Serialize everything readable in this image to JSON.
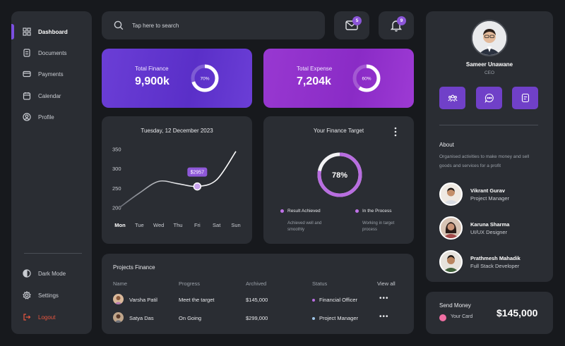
{
  "sidebar": {
    "items": [
      {
        "label": "Dashboard",
        "icon": "grid-icon"
      },
      {
        "label": "Documents",
        "icon": "document-icon"
      },
      {
        "label": "Payments",
        "icon": "card-icon"
      },
      {
        "label": "Calendar",
        "icon": "calendar-icon"
      },
      {
        "label": "Profile",
        "icon": "user-icon"
      }
    ],
    "bottom": [
      {
        "label": "Dark Mode",
        "icon": "contrast-icon"
      },
      {
        "label": "Settings",
        "icon": "gear-icon"
      },
      {
        "label": "Logout",
        "icon": "logout-icon"
      }
    ]
  },
  "search": {
    "placeholder": "Tap here to search"
  },
  "header": {
    "mail_badge": "5",
    "notification_badge": "9"
  },
  "stats": {
    "finance": {
      "label": "Total Finance",
      "value": "9,900k",
      "percent_label": "70%",
      "percent": 70
    },
    "expense": {
      "label": "Total Expense",
      "value": "7,204k",
      "percent_label": "60%",
      "percent": 60
    }
  },
  "chart_data": {
    "type": "line",
    "title": "Tuesday, 12 December 2023",
    "categories": [
      "Mon",
      "Tue",
      "Wed",
      "Thu",
      "Fri",
      "Sat",
      "Sun"
    ],
    "y_ticks": [
      350,
      300,
      250,
      200
    ],
    "ylim": [
      200,
      350
    ],
    "highlight_label": "$2957",
    "highlight_index": 4,
    "active_category": "Mon",
    "points": [
      {
        "x": 0,
        "y": 202
      },
      {
        "x": 1,
        "y": 238
      },
      {
        "x": 2,
        "y": 268
      },
      {
        "x": 3,
        "y": 262
      },
      {
        "x": 4,
        "y": 255
      },
      {
        "x": 5,
        "y": 272
      },
      {
        "x": 6,
        "y": 345
      }
    ]
  },
  "target": {
    "title": "Your Finance Target",
    "percent_label": "78%",
    "percent": 78,
    "legend": [
      {
        "label": "Result Achieved",
        "desc1": "Achieved well and",
        "desc2": "smoothly",
        "color": "#c072e8"
      },
      {
        "label": "In the Process",
        "desc1": "Working in target",
        "desc2": "process",
        "color": "#c072e8"
      }
    ]
  },
  "projects": {
    "title": "Projects Finance",
    "columns": [
      "Name",
      "Progress",
      "Archived",
      "Status",
      "View all"
    ],
    "rows": [
      {
        "name": "Varsha Patil",
        "progress": "Meet the target",
        "archived": "$145,000",
        "status": "Financial Officer",
        "status_color": "#b86de0"
      },
      {
        "name": "Satya Das",
        "progress": "On Going",
        "archived": "$299,000",
        "status": "Project Manager",
        "status_color": "#9ec5e8"
      }
    ]
  },
  "profile": {
    "name": "Sameer Unawane",
    "role": "CEO",
    "actions": [
      "team-icon",
      "chat-icon",
      "note-icon"
    ],
    "about_title": "About",
    "about_text": "Organised activities to make money and sell goods and services for a profit",
    "team": [
      {
        "name": "Vikrant Gurav",
        "role": "Project Manager"
      },
      {
        "name": "Karuna Sharma",
        "role": "UI/UX Designer"
      },
      {
        "name": "Prathmesh Mahadik",
        "role": "Full Stack Developer"
      }
    ]
  },
  "send_money": {
    "title": "Send Money",
    "card": "Your Card",
    "amount": "$145,000"
  },
  "colors": {
    "accent": "#7b4fe0",
    "finance_card": "#5a2fc8",
    "expense_card": "#8a2bc6",
    "logout": "#e8563f",
    "panel": "#2a2d33",
    "background": "#17191d"
  }
}
